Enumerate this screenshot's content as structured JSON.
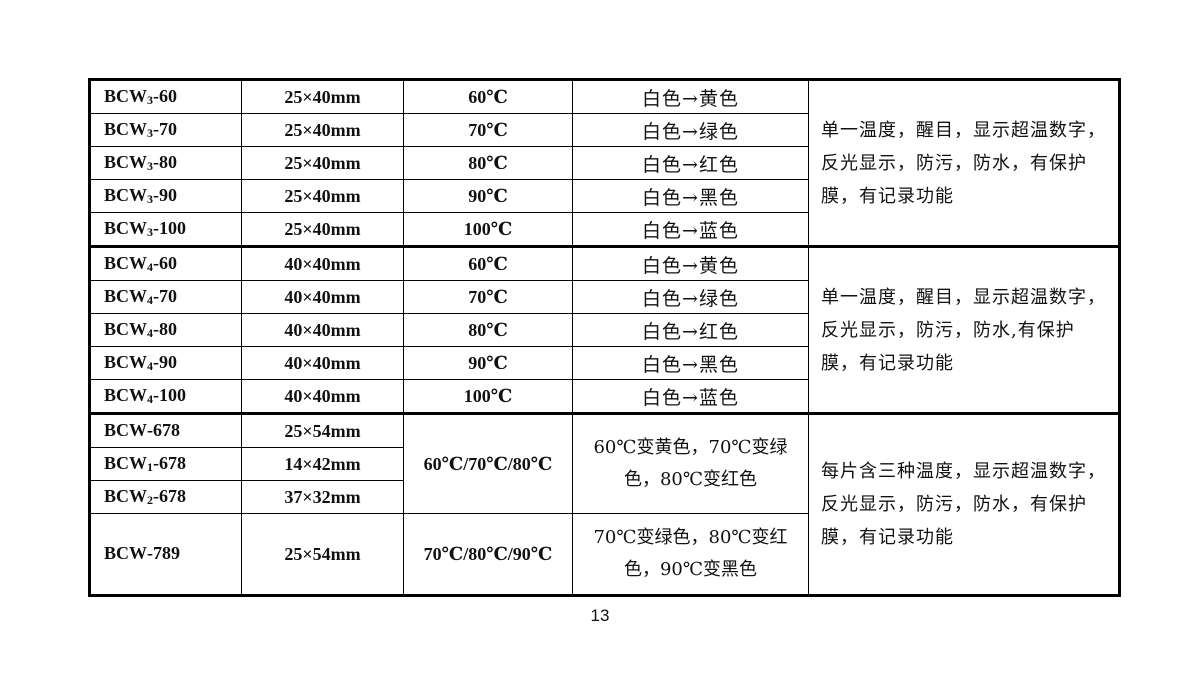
{
  "groups": [
    {
      "rows": [
        {
          "model": "BCW",
          "sub": "3",
          "suffix": "-60",
          "size": "25×40mm",
          "temp": "60℃",
          "color": "白色→黄色"
        },
        {
          "model": "BCW",
          "sub": "3",
          "suffix": "-70",
          "size": "25×40mm",
          "temp": "70℃",
          "color": "白色→绿色"
        },
        {
          "model": "BCW",
          "sub": "3",
          "suffix": "-80",
          "size": "25×40mm",
          "temp": "80℃",
          "color": "白色→红色"
        },
        {
          "model": "BCW",
          "sub": "3",
          "suffix": "-90",
          "size": "25×40mm",
          "temp": "90℃",
          "color": "白色→黑色"
        },
        {
          "model": "BCW",
          "sub": "3",
          "suffix": "-100",
          "size": "25×40mm",
          "temp": "100℃",
          "color": "白色→蓝色"
        }
      ],
      "description": "单一温度，醒目，显示超温数字，反光显示，防污，防水，有保护膜，有记录功能"
    },
    {
      "rows": [
        {
          "model": "BCW",
          "sub": "4",
          "suffix": "-60",
          "size": "40×40mm",
          "temp": "60℃",
          "color": "白色→黄色"
        },
        {
          "model": "BCW",
          "sub": "4",
          "suffix": "-70",
          "size": "40×40mm",
          "temp": "70℃",
          "color": "白色→绿色"
        },
        {
          "model": "BCW",
          "sub": "4",
          "suffix": "-80",
          "size": "40×40mm",
          "temp": "80℃",
          "color": "白色→红色"
        },
        {
          "model": "BCW",
          "sub": "4",
          "suffix": "-90",
          "size": "40×40mm",
          "temp": "90℃",
          "color": "白色→黑色"
        },
        {
          "model": "BCW",
          "sub": "4",
          "suffix": "-100",
          "size": "40×40mm",
          "temp": "100℃",
          "color": "白色→蓝色"
        }
      ],
      "description": "单一温度，醒目，显示超温数字，反光显示，防污，防水,有保护膜，有记录功能"
    },
    {
      "rows": [
        {
          "model": "BCW",
          "sub": "",
          "suffix": "-678",
          "size": "25×54mm"
        },
        {
          "model": "BCW",
          "sub": "1",
          "suffix": "-678",
          "size": "14×42mm"
        },
        {
          "model": "BCW",
          "sub": "2",
          "suffix": "-678",
          "size": "37×32mm"
        },
        {
          "model": "BCW",
          "sub": "",
          "suffix": "-789",
          "size": "25×54mm"
        }
      ],
      "temp_678": "60℃/70℃/80℃",
      "color_678": "60℃变黄色，70℃变绿色，80℃变红色",
      "temp_789": "70℃/80℃/90℃",
      "color_789": "70℃变绿色，80℃变红色，90℃变黑色",
      "description": "每片含三种温度，显示超温数字，反光显示，防污，防水，有保护膜，有记录功能"
    }
  ],
  "page_number": "13"
}
